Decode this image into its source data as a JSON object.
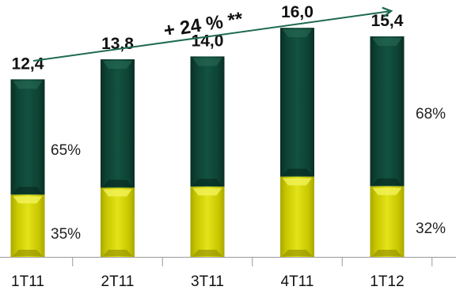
{
  "chart_data": {
    "type": "bar",
    "stacked": true,
    "categories": [
      "1T11",
      "2T11",
      "3T11",
      "4T11",
      "1T12"
    ],
    "totals": [
      12.4,
      13.8,
      14.0,
      16.0,
      15.4
    ],
    "total_labels": [
      "12,4",
      "13,8",
      "14,0",
      "16,0",
      "15,4"
    ],
    "series": [
      {
        "values": [
          4.34,
          4.83,
          4.9,
          5.6,
          4.93
        ],
        "color": "#d4d400"
      },
      {
        "values": [
          8.06,
          8.97,
          9.1,
          10.4,
          10.47
        ],
        "color": "#0f4a38"
      }
    ],
    "segment_labels": [
      {
        "category": "1T11",
        "lower": "35%",
        "upper": "65%"
      },
      {
        "category": "1T12",
        "lower": "32%",
        "upper": "68%"
      }
    ],
    "trend_annotation": "+ 24 % **",
    "ylim": [
      0,
      17.5
    ]
  }
}
